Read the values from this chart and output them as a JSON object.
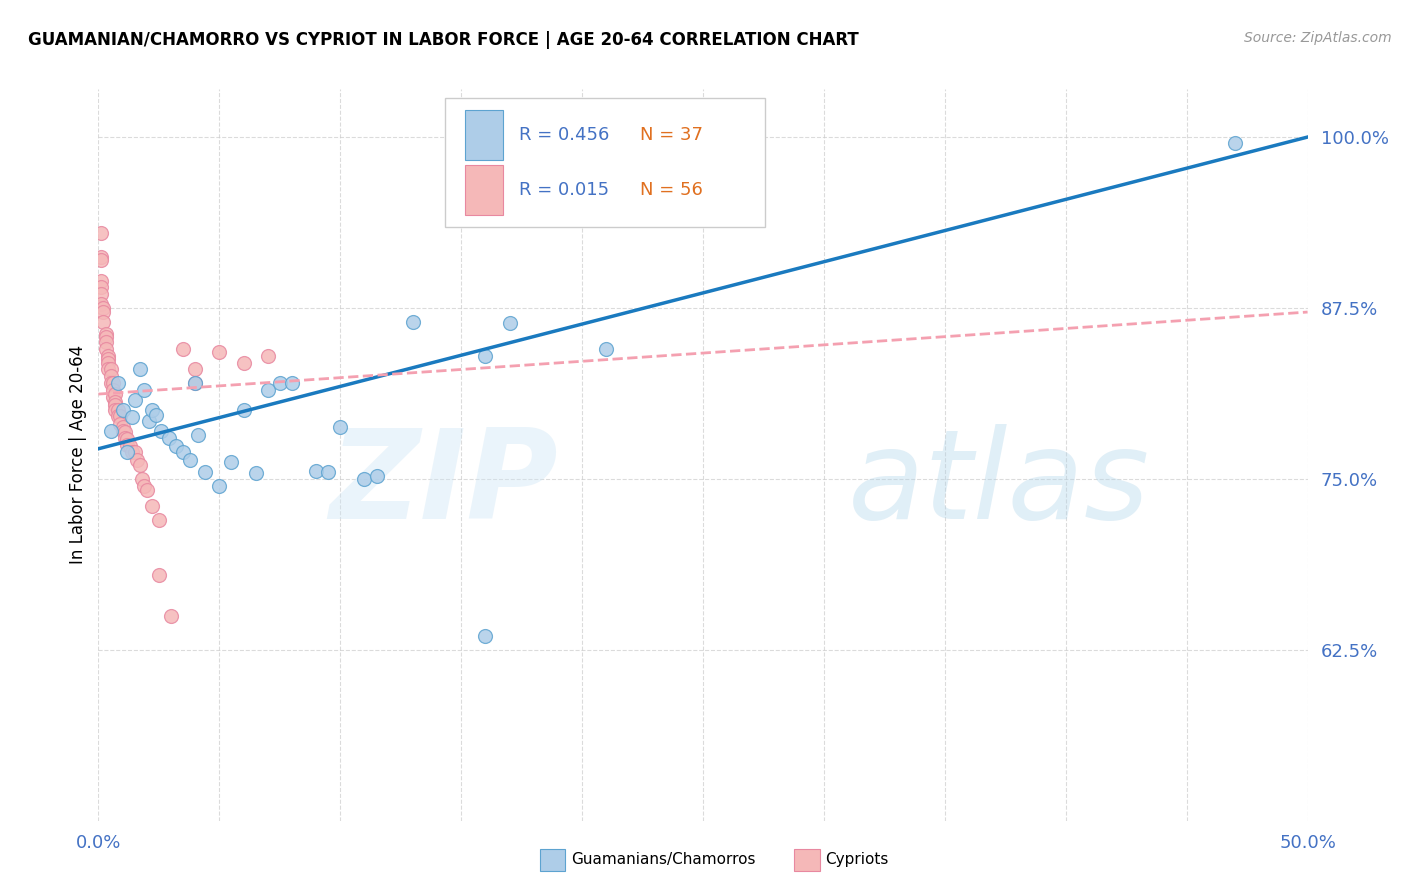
{
  "title": "GUAMANIAN/CHAMORRO VS CYPRIOT IN LABOR FORCE | AGE 20-64 CORRELATION CHART",
  "source": "Source: ZipAtlas.com",
  "ylabel": "In Labor Force | Age 20-64",
  "xlim": [
    0.0,
    0.5
  ],
  "ylim": [
    0.5,
    1.035
  ],
  "yticks": [
    0.625,
    0.75,
    0.875,
    1.0
  ],
  "ytick_labels": [
    "62.5%",
    "75.0%",
    "87.5%",
    "100.0%"
  ],
  "xtick_positions": [
    0.0,
    0.05,
    0.1,
    0.15,
    0.2,
    0.25,
    0.3,
    0.35,
    0.4,
    0.45,
    0.5
  ],
  "blue_fill": "#aecde8",
  "blue_edge": "#5da3d0",
  "pink_fill": "#f5b8b8",
  "pink_edge": "#e888a0",
  "trend_blue": "#1a7abf",
  "trend_pink": "#f4a0b0",
  "label_color": "#4472c4",
  "n_color": "#e07020",
  "bg_color": "#ffffff",
  "grid_color": "#cccccc",
  "blue_scatter_x": [
    0.005,
    0.008,
    0.01,
    0.012,
    0.014,
    0.015,
    0.017,
    0.019,
    0.021,
    0.022,
    0.024,
    0.026,
    0.029,
    0.032,
    0.035,
    0.038,
    0.04,
    0.041,
    0.044,
    0.05,
    0.055,
    0.06,
    0.065,
    0.07,
    0.075,
    0.08,
    0.09,
    0.095,
    0.1,
    0.11,
    0.115,
    0.13,
    0.16,
    0.17,
    0.21,
    0.47,
    0.16
  ],
  "blue_scatter_y": [
    0.785,
    0.82,
    0.8,
    0.77,
    0.795,
    0.808,
    0.83,
    0.815,
    0.792,
    0.8,
    0.797,
    0.785,
    0.78,
    0.774,
    0.77,
    0.764,
    0.82,
    0.782,
    0.755,
    0.745,
    0.762,
    0.8,
    0.754,
    0.815,
    0.82,
    0.82,
    0.756,
    0.755,
    0.788,
    0.75,
    0.752,
    0.865,
    0.84,
    0.864,
    0.845,
    0.996,
    0.635
  ],
  "pink_scatter_x": [
    0.001,
    0.001,
    0.001,
    0.001,
    0.001,
    0.001,
    0.001,
    0.002,
    0.002,
    0.002,
    0.003,
    0.003,
    0.003,
    0.003,
    0.004,
    0.004,
    0.004,
    0.004,
    0.005,
    0.005,
    0.005,
    0.006,
    0.006,
    0.006,
    0.007,
    0.007,
    0.007,
    0.007,
    0.008,
    0.008,
    0.009,
    0.009,
    0.01,
    0.01,
    0.011,
    0.011,
    0.012,
    0.012,
    0.013,
    0.014,
    0.015,
    0.016,
    0.017,
    0.018,
    0.019,
    0.02,
    0.022,
    0.025,
    0.025,
    0.03,
    0.035,
    0.04,
    0.04,
    0.05,
    0.06,
    0.07
  ],
  "pink_scatter_y": [
    0.93,
    0.912,
    0.91,
    0.895,
    0.89,
    0.885,
    0.878,
    0.875,
    0.872,
    0.865,
    0.856,
    0.854,
    0.85,
    0.845,
    0.84,
    0.838,
    0.835,
    0.83,
    0.83,
    0.825,
    0.82,
    0.82,
    0.815,
    0.81,
    0.812,
    0.806,
    0.804,
    0.8,
    0.8,
    0.796,
    0.796,
    0.79,
    0.788,
    0.785,
    0.784,
    0.78,
    0.779,
    0.775,
    0.774,
    0.77,
    0.77,
    0.764,
    0.76,
    0.75,
    0.745,
    0.742,
    0.73,
    0.72,
    0.68,
    0.65,
    0.845,
    0.83,
    0.82,
    0.843,
    0.835,
    0.84
  ],
  "blue_trend_x": [
    0.0,
    0.5
  ],
  "blue_trend_y": [
    0.772,
    1.0
  ],
  "pink_trend_x": [
    0.0,
    0.5
  ],
  "pink_trend_y": [
    0.812,
    0.872
  ]
}
